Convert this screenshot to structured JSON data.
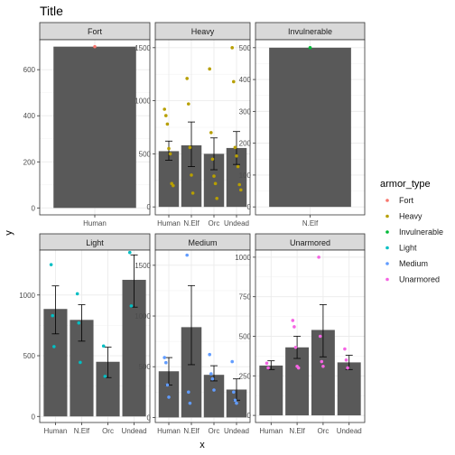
{
  "chart_data": {
    "type": "bar",
    "title": "Title",
    "xlabel": "x",
    "ylabel": "y",
    "legend": {
      "title": "armor_type",
      "position": "right",
      "entries": [
        {
          "label": "Fort",
          "color": "#F8766D"
        },
        {
          "label": "Heavy",
          "color": "#B79F00"
        },
        {
          "label": "Invulnerable",
          "color": "#00BA38"
        },
        {
          "label": "Light",
          "color": "#00BFC4"
        },
        {
          "label": "Medium",
          "color": "#619CFF"
        },
        {
          "label": "Unarmored",
          "color": "#F564E3"
        }
      ]
    },
    "facets": [
      {
        "name": "Fort",
        "color": "#F8766D",
        "ylim": [
          -30,
          730
        ],
        "yticks": [
          0,
          200,
          400,
          600
        ],
        "categories": [
          "Human"
        ],
        "bars": [
          {
            "cat": "Human",
            "value": 700,
            "err": null
          }
        ],
        "points": [
          {
            "cat": "Human",
            "y": 700
          }
        ]
      },
      {
        "name": "Heavy",
        "color": "#B79F00",
        "ylim": [
          -75,
          1575
        ],
        "yticks": [
          0,
          500,
          1000,
          1500
        ],
        "categories": [
          "Human",
          "N.Elf",
          "Orc",
          "Undead"
        ],
        "bars": [
          {
            "cat": "Human",
            "value": 525,
            "err": [
              440,
              620
            ]
          },
          {
            "cat": "N.Elf",
            "value": 580,
            "err": [
              380,
              800
            ]
          },
          {
            "cat": "Orc",
            "value": 500,
            "err": [
              350,
              650
            ]
          },
          {
            "cat": "Undead",
            "value": 555,
            "err": [
              400,
              710
            ]
          }
        ],
        "points": [
          {
            "cat": "Human",
            "y": 920
          },
          {
            "cat": "Human",
            "y": 860
          },
          {
            "cat": "Human",
            "y": 780
          },
          {
            "cat": "Human",
            "y": 550
          },
          {
            "cat": "Human",
            "y": 500
          },
          {
            "cat": "Human",
            "y": 220
          },
          {
            "cat": "Human",
            "y": 200
          },
          {
            "cat": "N.Elf",
            "y": 1210
          },
          {
            "cat": "N.Elf",
            "y": 970
          },
          {
            "cat": "N.Elf",
            "y": 560
          },
          {
            "cat": "N.Elf",
            "y": 300
          },
          {
            "cat": "N.Elf",
            "y": 130
          },
          {
            "cat": "Orc",
            "y": 1300
          },
          {
            "cat": "Orc",
            "y": 700
          },
          {
            "cat": "Orc",
            "y": 450
          },
          {
            "cat": "Orc",
            "y": 290
          },
          {
            "cat": "Orc",
            "y": 220
          },
          {
            "cat": "Orc",
            "y": 80
          },
          {
            "cat": "Undead",
            "y": 1500
          },
          {
            "cat": "Undead",
            "y": 1180
          },
          {
            "cat": "Undead",
            "y": 560
          },
          {
            "cat": "Undead",
            "y": 480
          },
          {
            "cat": "Undead",
            "y": 380
          },
          {
            "cat": "Undead",
            "y": 210
          },
          {
            "cat": "Undead",
            "y": 160
          }
        ]
      },
      {
        "name": "Invulnerable",
        "color": "#00BA38",
        "ylim": [
          -25,
          525
        ],
        "yticks": [
          0,
          100,
          200,
          300,
          400,
          500
        ],
        "categories": [
          "N.Elf"
        ],
        "bars": [
          {
            "cat": "N.Elf",
            "value": 500,
            "err": null
          }
        ],
        "points": [
          {
            "cat": "N.Elf",
            "y": 500
          }
        ]
      },
      {
        "name": "Light",
        "color": "#00BFC4",
        "ylim": [
          -50,
          1370
        ],
        "yticks": [
          0,
          500,
          1000
        ],
        "categories": [
          "Human",
          "N.Elf",
          "Orc",
          "Undead"
        ],
        "bars": [
          {
            "cat": "Human",
            "value": 885,
            "err": [
              680,
              1075
            ]
          },
          {
            "cat": "N.Elf",
            "value": 795,
            "err": [
              620,
              920
            ]
          },
          {
            "cat": "Orc",
            "value": 450,
            "err": [
              320,
              570
            ]
          },
          {
            "cat": "Undead",
            "value": 1125,
            "err": [
              900,
              1330
            ]
          }
        ],
        "points": [
          {
            "cat": "Human",
            "y": 1250
          },
          {
            "cat": "Human",
            "y": 830
          },
          {
            "cat": "Human",
            "y": 575
          },
          {
            "cat": "N.Elf",
            "y": 1010
          },
          {
            "cat": "N.Elf",
            "y": 770
          },
          {
            "cat": "N.Elf",
            "y": 445
          },
          {
            "cat": "Orc",
            "y": 580
          },
          {
            "cat": "Orc",
            "y": 330
          },
          {
            "cat": "Undead",
            "y": 1350
          },
          {
            "cat": "Undead",
            "y": 910
          }
        ]
      },
      {
        "name": "Medium",
        "color": "#619CFF",
        "ylim": [
          -50,
          1650
        ],
        "yticks": [
          0,
          500,
          1000,
          1500
        ],
        "categories": [
          "Human",
          "N.Elf",
          "Orc",
          "Undead"
        ],
        "bars": [
          {
            "cat": "Human",
            "value": 455,
            "err": [
              320,
              590
            ]
          },
          {
            "cat": "N.Elf",
            "value": 890,
            "err": [
              520,
              1300
            ]
          },
          {
            "cat": "Orc",
            "value": 420,
            "err": [
              360,
              510
            ]
          },
          {
            "cat": "Undead",
            "value": 275,
            "err": [
              170,
              380
            ]
          }
        ],
        "points": [
          {
            "cat": "Human",
            "y": 590
          },
          {
            "cat": "Human",
            "y": 540
          },
          {
            "cat": "Human",
            "y": 320
          },
          {
            "cat": "Human",
            "y": 200
          },
          {
            "cat": "N.Elf",
            "y": 1600
          },
          {
            "cat": "N.Elf",
            "y": 250
          },
          {
            "cat": "N.Elf",
            "y": 140
          },
          {
            "cat": "Orc",
            "y": 620
          },
          {
            "cat": "Orc",
            "y": 430
          },
          {
            "cat": "Orc",
            "y": 380
          },
          {
            "cat": "Orc",
            "y": 270
          },
          {
            "cat": "Undead",
            "y": 550
          },
          {
            "cat": "Undead",
            "y": 250
          },
          {
            "cat": "Undead",
            "y": 170
          },
          {
            "cat": "Undead",
            "y": 140
          }
        ]
      },
      {
        "name": "Unarmored",
        "color": "#F564E3",
        "ylim": [
          -45,
          1045
        ],
        "yticks": [
          0,
          250,
          500,
          750,
          1000
        ],
        "categories": [
          "Human",
          "N.Elf",
          "Orc",
          "Undead"
        ],
        "bars": [
          {
            "cat": "Human",
            "value": 315,
            "err": [
              290,
              345
            ]
          },
          {
            "cat": "N.Elf",
            "value": 430,
            "err": [
              360,
              500
            ]
          },
          {
            "cat": "Orc",
            "value": 540,
            "err": [
              370,
              700
            ]
          },
          {
            "cat": "Undead",
            "value": 335,
            "err": [
              290,
              380
            ]
          }
        ],
        "points": [
          {
            "cat": "Human",
            "y": 330
          },
          {
            "cat": "Human",
            "y": 300
          },
          {
            "cat": "N.Elf",
            "y": 600
          },
          {
            "cat": "N.Elf",
            "y": 560
          },
          {
            "cat": "N.Elf",
            "y": 430
          },
          {
            "cat": "N.Elf",
            "y": 310
          },
          {
            "cat": "N.Elf",
            "y": 300
          },
          {
            "cat": "Orc",
            "y": 1000
          },
          {
            "cat": "Orc",
            "y": 500
          },
          {
            "cat": "Orc",
            "y": 340
          },
          {
            "cat": "Orc",
            "y": 310
          },
          {
            "cat": "Undead",
            "y": 420
          },
          {
            "cat": "Undead",
            "y": 350
          },
          {
            "cat": "Undead",
            "y": 300
          }
        ]
      }
    ]
  }
}
